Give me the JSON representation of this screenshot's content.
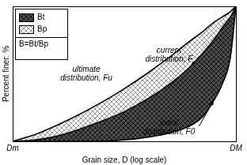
{
  "chart_data": {
    "type": "line",
    "x_label": "Grain size, D (log scale)",
    "y_label": "Percent finer: %",
    "log": "x",
    "grid": false,
    "tick_labels": "x",
    "legend": "upper left",
    "xlim": [
      1,
      100
    ],
    "xticks": [
      {
        "value": 1,
        "label": "Dm"
      },
      {
        "value": 100,
        "label": "DM"
      }
    ],
    "ylim": [
      0,
      100
    ],
    "x": [
      1,
      1.58,
      2.51,
      3.98,
      6.31,
      10,
      15.85,
      25.12,
      39.81,
      50.12,
      63.1,
      75,
      89.13,
      100
    ],
    "series": [
      {
        "name": "ultimate distribution, Fu",
        "color": "#000000",
        "values": [
          0,
          5,
          12,
          20,
          29,
          39,
          50,
          62,
          75,
          81,
          88,
          92,
          96,
          100
        ]
      },
      {
        "name": "current distribution, F",
        "color": "#000000",
        "values": [
          0,
          1,
          4,
          9,
          15,
          22,
          31,
          42,
          56,
          65,
          75,
          84,
          92,
          100
        ]
      },
      {
        "name": "initial distribution, F0",
        "color": "#000000",
        "values": [
          0,
          0,
          0,
          0,
          0,
          1,
          3,
          6,
          12,
          18,
          30,
          42,
          62,
          100
        ]
      }
    ],
    "areas": [
      {
        "name": "Bt",
        "color": "#4d4d4d",
        "upper": "current distribution, F",
        "lower": "initial distribution, F0"
      },
      {
        "name": "Bp",
        "color": "#9a9a9a",
        "upper": "ultimate distribution, Fu",
        "lower": "initial distribution, F0"
      }
    ],
    "annotations": [
      "B=Bt/Bp"
    ]
  }
}
